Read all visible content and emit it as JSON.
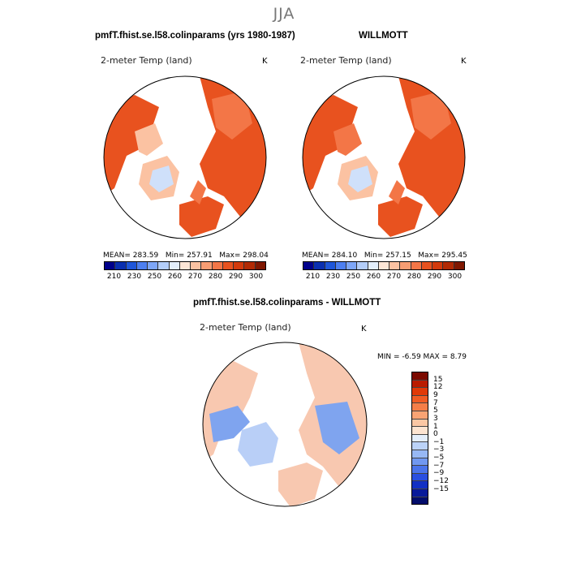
{
  "figure": {
    "season": "JJA",
    "panels": [
      {
        "title": "pmfT.fhist.se.l58.colinparams (yrs 1980-1987)",
        "variable": "2-meter Temp (land)",
        "unit": "K",
        "mean_text": "MEAN= 283.59",
        "min_text": "Min= 257.91",
        "max_text": "Max= 298.04"
      },
      {
        "title": "WILLMOTT",
        "variable": "2-meter Temp (land)",
        "unit": "K",
        "mean_text": "MEAN= 284.10",
        "min_text": "Min= 257.15",
        "max_text": "Max= 295.45"
      }
    ],
    "diff_panel": {
      "title": "pmfT.fhist.se.l58.colinparams - WILLMOTT",
      "variable": "2-meter Temp (land)",
      "unit": "K",
      "minmax_text": "MIN =   -6.59  MAX =    8.79"
    },
    "abs_colorbar": {
      "colors": [
        "#00008b",
        "#0a2fb0",
        "#1f56d9",
        "#4d7ff0",
        "#7ea6f7",
        "#b3cdf9",
        "#e3eefb",
        "#fde6d6",
        "#fbc2a2",
        "#f89d73",
        "#f37647",
        "#e8521f",
        "#d33a0c",
        "#b22a04",
        "#7f1700"
      ],
      "tick_labels": [
        "210",
        "230",
        "250",
        "260",
        "270",
        "280",
        "290",
        "300"
      ]
    },
    "diff_colorbar": {
      "colors": [
        "#7b0a00",
        "#b91c00",
        "#e03a08",
        "#f05c24",
        "#f57e48",
        "#f9a374",
        "#fbc7a4",
        "#fde4d1",
        "#e4eefb",
        "#bcd3f8",
        "#97b8f4",
        "#7198f0",
        "#4b74ea",
        "#2a4fe0",
        "#1230c4",
        "#081a9a",
        "#020d6b"
      ],
      "tick_labels": [
        "15",
        "12",
        "9",
        "7",
        "5",
        "3",
        "1",
        "0",
        "−1",
        "−3",
        "−5",
        "−7",
        "−9",
        "−12",
        "−15"
      ]
    },
    "map_colors": {
      "ocean": "#ffffff",
      "abs_land_warm": "#e8521f",
      "abs_land_mid": "#f37647",
      "abs_land_cool": "#fbc2a2",
      "abs_ice": "#cfe0fa",
      "diff_pos": "#f8c8b0",
      "diff_neg": "#7fa4ef"
    }
  }
}
